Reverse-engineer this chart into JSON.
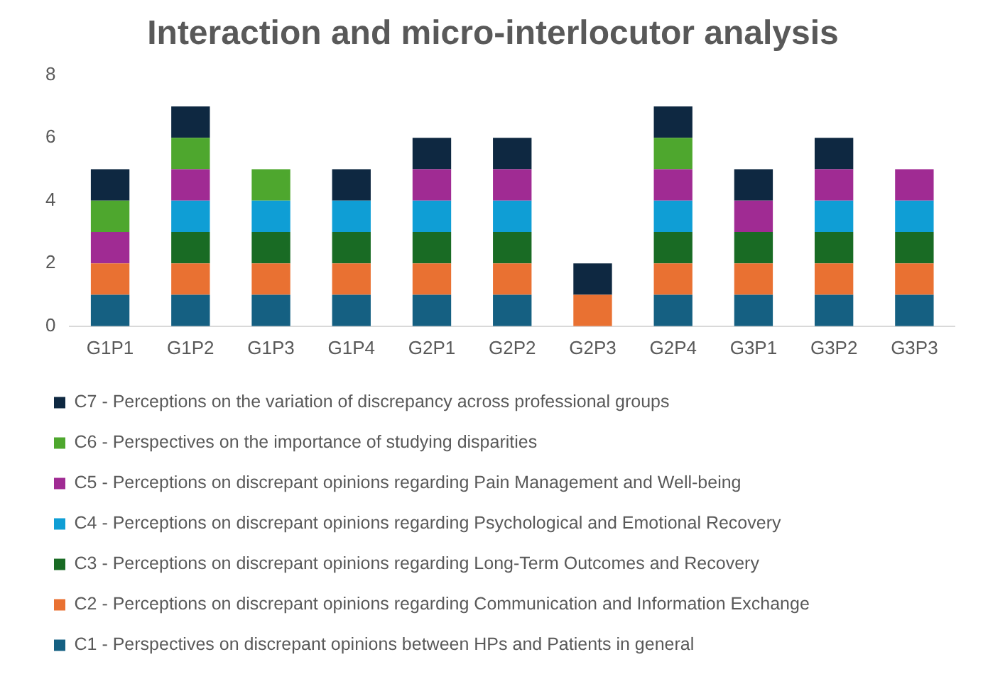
{
  "chart_data": {
    "type": "bar",
    "title": "Interaction and micro-interlocutor analysis",
    "stacked": true,
    "legend": "bottom",
    "grid": false,
    "categories": [
      "G1P1",
      "G1P2",
      "G1P3",
      "G1P4",
      "G2P1",
      "G2P2",
      "G2P3",
      "G2P4",
      "G3P1",
      "G3P2",
      "G3P3"
    ],
    "ylim": [
      0,
      8
    ],
    "yticks": [
      0,
      2,
      4,
      6,
      8
    ],
    "series": [
      {
        "name": "C1 - Perspectives on discrepant opinions between HPs and Patients in general",
        "color": "#156082",
        "values": [
          1,
          1,
          1,
          1,
          1,
          1,
          0,
          1,
          1,
          1,
          1
        ]
      },
      {
        "name": "C2 - Perceptions on discrepant opinions regarding Communication and Information Exchange",
        "color": "#e97132",
        "values": [
          1,
          1,
          1,
          1,
          1,
          1,
          1,
          1,
          1,
          1,
          1
        ]
      },
      {
        "name": "C3 - Perceptions on discrepant opinions regarding Long-Term Outcomes and Recovery",
        "color": "#196b24",
        "values": [
          0,
          1,
          1,
          1,
          1,
          1,
          0,
          1,
          1,
          1,
          1
        ]
      },
      {
        "name": "C4 - Perceptions on discrepant opinions regarding Psychological and Emotional Recovery",
        "color": "#0f9ed5",
        "values": [
          0,
          1,
          1,
          1,
          1,
          1,
          0,
          1,
          0,
          1,
          1
        ]
      },
      {
        "name": "C5 - Perceptions on discrepant opinions regarding Pain Management and Well-being",
        "color": "#a02b93",
        "values": [
          1,
          1,
          0,
          0,
          1,
          1,
          0,
          1,
          1,
          1,
          1
        ]
      },
      {
        "name": "C6 - Perspectives on the importance of studying disparities",
        "color": "#4ea72e",
        "values": [
          1,
          1,
          1,
          0,
          0,
          0,
          0,
          1,
          0,
          0,
          0
        ]
      },
      {
        "name": "C7 - Perceptions on the variation of discrepancy across professional groups",
        "color": "#0e2841",
        "values": [
          1,
          1,
          0,
          1,
          1,
          1,
          1,
          1,
          1,
          1,
          0
        ]
      }
    ]
  }
}
